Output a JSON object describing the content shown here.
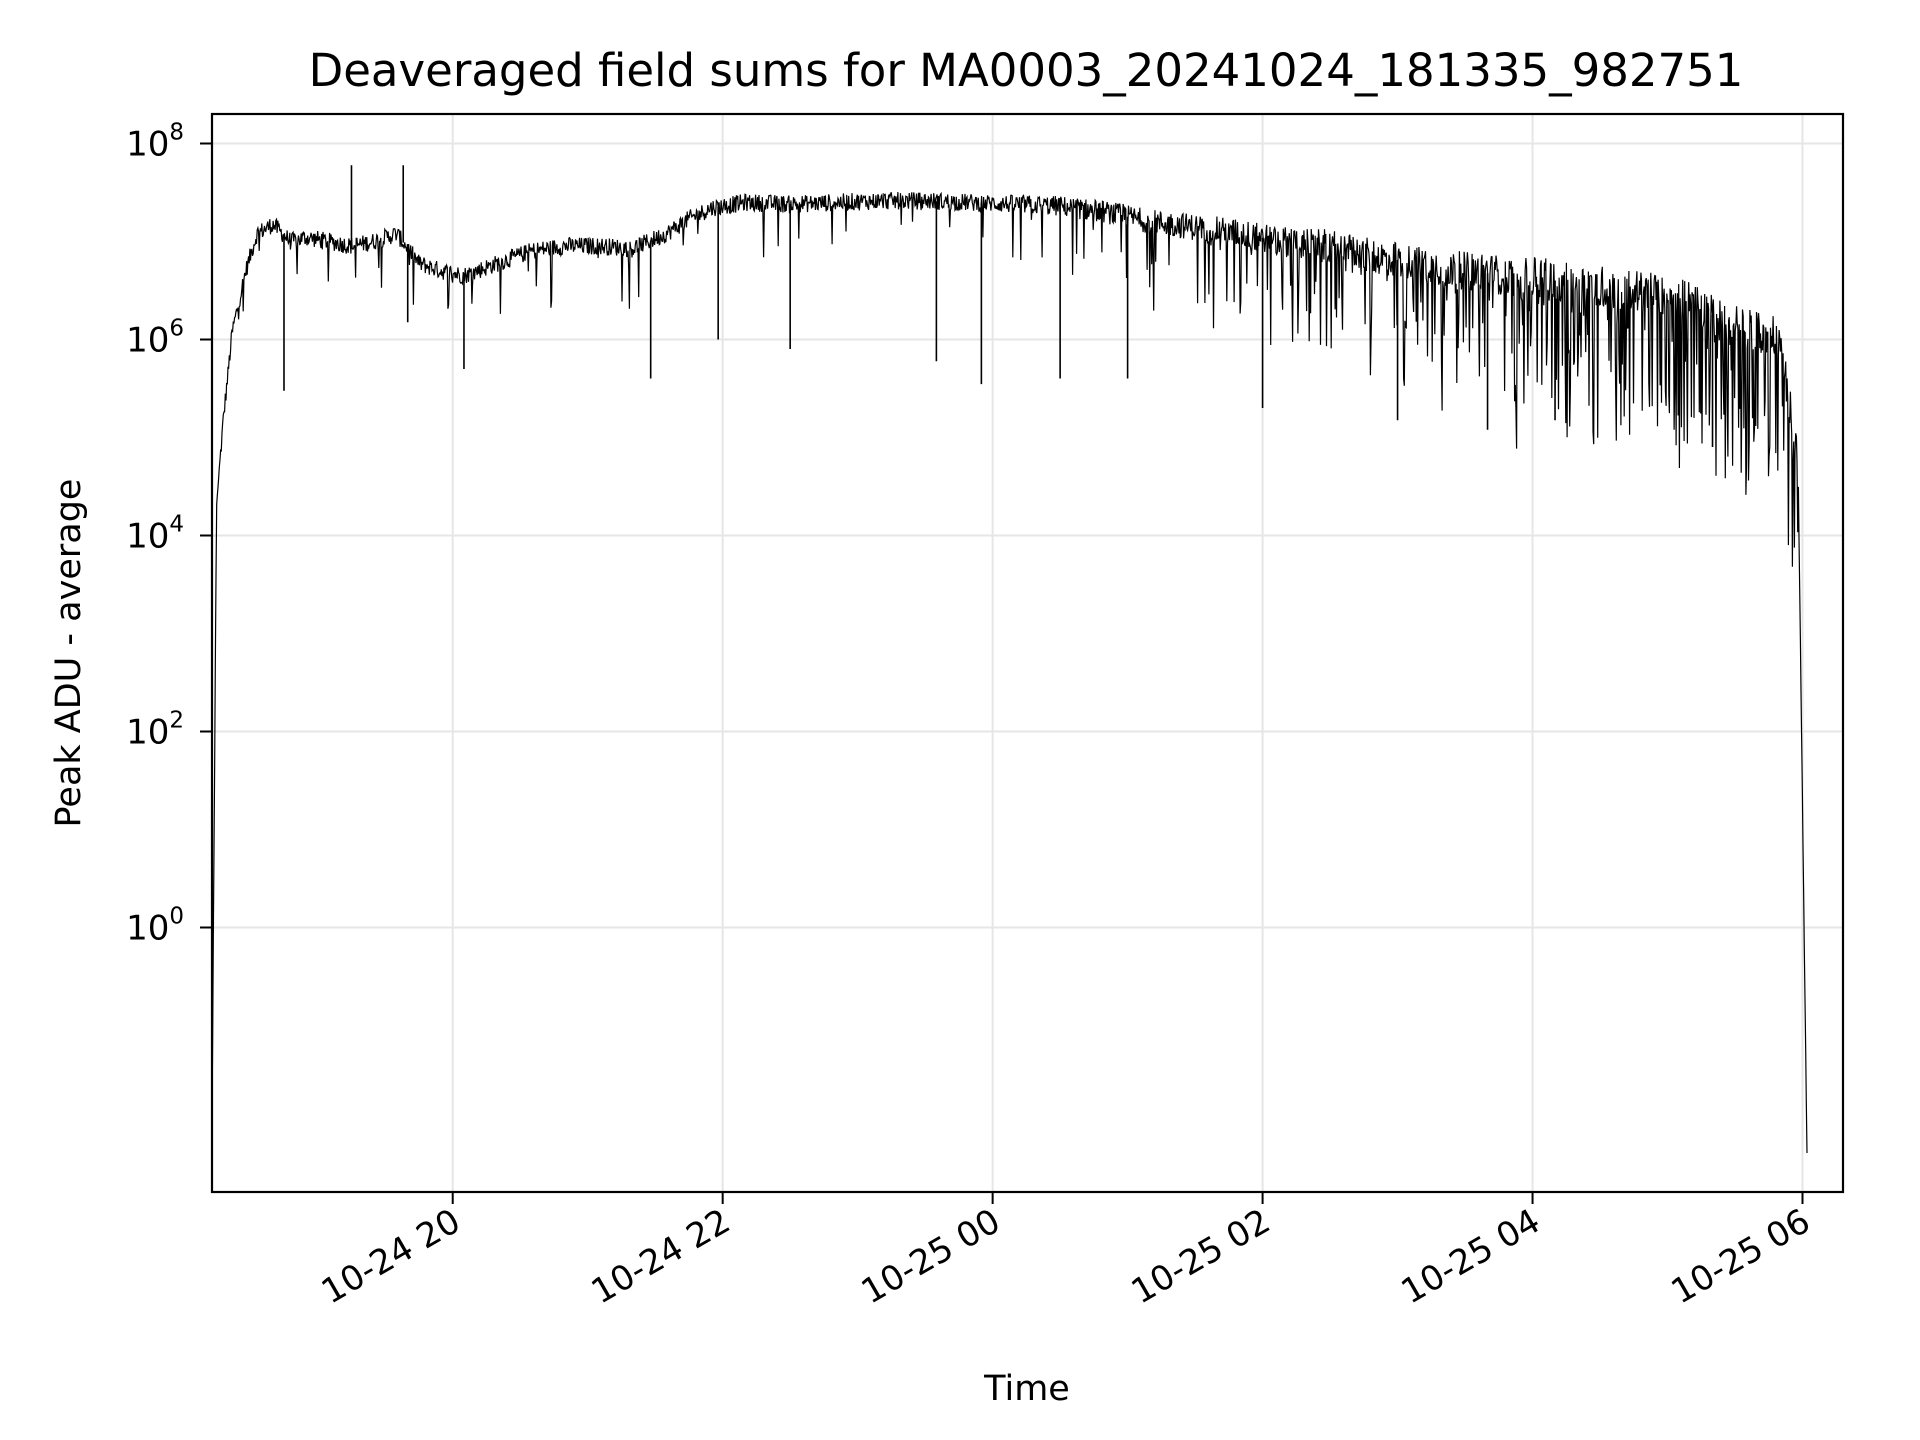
{
  "chart_data": {
    "type": "line",
    "title": "Deaveraged field sums for MA0003_20241024_181335_982751",
    "xlabel": "Time",
    "ylabel": "Peak ADU - average",
    "x_scale": "time",
    "y_scale": "log",
    "xlim": [
      "2024-10-24 18:13",
      "2024-10-25 06:18"
    ],
    "ylim": [
      0.002,
      200000000
    ],
    "x_tick_labels": [
      "10-24 20",
      "10-24 22",
      "10-25 00",
      "10-25 02",
      "10-25 04",
      "10-25 06"
    ],
    "y_tick_labels": [
      {
        "base": "10",
        "exp": "0"
      },
      {
        "base": "10",
        "exp": "2"
      },
      {
        "base": "10",
        "exp": "4"
      },
      {
        "base": "10",
        "exp": "6"
      },
      {
        "base": "10",
        "exp": "8"
      }
    ],
    "grid": true,
    "legend": "none",
    "line_color": "#000000",
    "series": [
      {
        "x": [
          "2024-10-24 18:13",
          "2024-10-24 18:15",
          "2024-10-24 18:18",
          "2024-10-24 18:22",
          "2024-10-24 18:28",
          "2024-10-24 18:33",
          "2024-10-24 18:40",
          "2024-10-24 18:48",
          "2024-10-24 18:55",
          "2024-10-24 19:05",
          "2024-10-24 19:15",
          "2024-10-24 19:25",
          "2024-10-24 19:35",
          "2024-10-24 19:45",
          "2024-10-24 19:55",
          "2024-10-24 20:05",
          "2024-10-24 20:20",
          "2024-10-24 20:35",
          "2024-10-24 20:50",
          "2024-10-24 21:05",
          "2024-10-24 21:20",
          "2024-10-24 21:35",
          "2024-10-24 21:45",
          "2024-10-24 21:55",
          "2024-10-24 22:10",
          "2024-10-24 22:30",
          "2024-10-24 22:50",
          "2024-10-24 23:10",
          "2024-10-24 23:30",
          "2024-10-24 23:50",
          "2024-10-25 00:10",
          "2024-10-25 00:30",
          "2024-10-25 00:50",
          "2024-10-25 01:10",
          "2024-10-25 01:30",
          "2024-10-25 01:50",
          "2024-10-25 02:10",
          "2024-10-25 02:30",
          "2024-10-25 02:50",
          "2024-10-25 03:10",
          "2024-10-25 03:30",
          "2024-10-25 03:50",
          "2024-10-25 04:10",
          "2024-10-25 04:30",
          "2024-10-25 04:50",
          "2024-10-25 05:10",
          "2024-10-25 05:25",
          "2024-10-25 05:40",
          "2024-10-25 05:50",
          "2024-10-25 05:58",
          "2024-10-25 06:02"
        ],
        "y": [
          0.01,
          20000,
          150000,
          1200000,
          5000000,
          12000000,
          15000000,
          10000000,
          11000000,
          10000000,
          9000000,
          10000000,
          12000000,
          6000000,
          5000000,
          4500000,
          6000000,
          8000000,
          9000000,
          9000000,
          8500000,
          12000000,
          17000000,
          22000000,
          25000000,
          24000000,
          25000000,
          26000000,
          26000000,
          25000000,
          24000000,
          23000000,
          20000000,
          16000000,
          14000000,
          12000000,
          10000000,
          9000000,
          7000000,
          6000000,
          5000000,
          4500000,
          4000000,
          3500000,
          3000000,
          2500000,
          1500000,
          1200000,
          1000000,
          60000,
          0.005
        ],
        "dips": [
          {
            "x": "2024-10-24 18:45",
            "y": 300000
          },
          {
            "x": "2024-10-24 19:40",
            "y": 1500000
          },
          {
            "x": "2024-10-24 20:05",
            "y": 500000
          },
          {
            "x": "2024-10-24 21:28",
            "y": 400000
          },
          {
            "x": "2024-10-24 21:58",
            "y": 1000000
          },
          {
            "x": "2024-10-24 22:30",
            "y": 800000
          },
          {
            "x": "2024-10-24 23:35",
            "y": 600000
          },
          {
            "x": "2024-10-24 23:55",
            "y": 350000
          },
          {
            "x": "2024-10-25 00:30",
            "y": 400000
          },
          {
            "x": "2024-10-25 01:00",
            "y": 400000
          },
          {
            "x": "2024-10-25 02:00",
            "y": 200000
          },
          {
            "x": "2024-10-25 03:00",
            "y": 150000
          },
          {
            "x": "2024-10-25 03:40",
            "y": 120000
          },
          {
            "x": "2024-10-25 04:10",
            "y": 150000
          },
          {
            "x": "2024-10-25 05:20",
            "y": 80000
          }
        ],
        "spikes": [
          {
            "x": "2024-10-24 19:15",
            "y": 60000000
          },
          {
            "x": "2024-10-24 19:38",
            "y": 60000000
          }
        ]
      }
    ]
  }
}
